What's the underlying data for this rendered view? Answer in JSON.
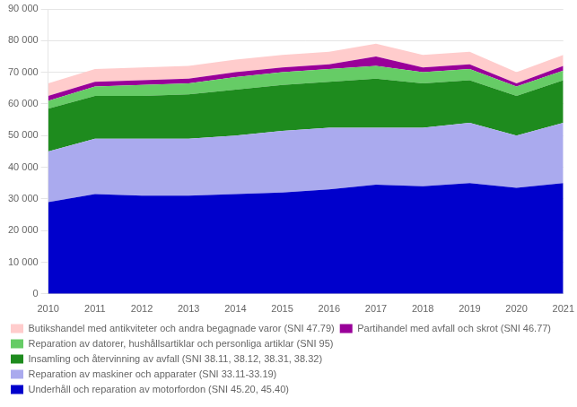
{
  "chart_data": {
    "type": "area",
    "stacked": true,
    "x": [
      2010,
      2011,
      2012,
      2013,
      2014,
      2015,
      2016,
      2017,
      2018,
      2019,
      2020,
      2021
    ],
    "series": [
      {
        "name": "Underhåll och reparation av motorfordon (SNI 45.20, 45.40)",
        "color": "#0000CC",
        "values": [
          29000,
          31500,
          31000,
          31000,
          31500,
          32000,
          33000,
          34500,
          34000,
          35000,
          33500,
          35000
        ]
      },
      {
        "name": "Reparation av maskiner och apparater (SNI 33.11-33.19)",
        "color": "#AAAAEE",
        "values": [
          16000,
          17500,
          18000,
          18000,
          18500,
          19500,
          19500,
          18000,
          18500,
          19000,
          16500,
          19000
        ]
      },
      {
        "name": "Insamling och återvinning av avfall (SNI 38.11, 38.12, 38.31, 38.32)",
        "color": "#1E8B1E",
        "values": [
          13500,
          13500,
          13500,
          14000,
          14500,
          14500,
          14500,
          15500,
          14000,
          13500,
          12500,
          13500
        ]
      },
      {
        "name": "Reparation av datorer, hushållsartiklar och personliga artiklar (SNI 95)",
        "color": "#66CC66",
        "values": [
          2500,
          3000,
          3500,
          3500,
          4000,
          4000,
          4000,
          4000,
          3500,
          3500,
          3000,
          3000
        ]
      },
      {
        "name": "Partihandel med avfall och skrot (SNI 46.77)",
        "color": "#990099",
        "values": [
          1500,
          1500,
          1500,
          1500,
          1500,
          1500,
          1500,
          3000,
          1500,
          1500,
          1000,
          1500
        ]
      },
      {
        "name": "Butikshandel med antikviteter och andra begagnade varor (SNI 47.79)",
        "color": "#FFCCCC",
        "values": [
          4000,
          4000,
          4000,
          4000,
          4000,
          4000,
          4000,
          4000,
          4000,
          4000,
          3500,
          3500
        ]
      }
    ],
    "xlim": [
      2010,
      2021
    ],
    "xticks": [
      2010,
      2011,
      2012,
      2013,
      2014,
      2015,
      2016,
      2017,
      2018,
      2019,
      2020,
      2021
    ],
    "ylim": [
      0,
      90000
    ],
    "yticks": [
      0,
      {
        "value": 10000,
        "label": "10 000"
      },
      {
        "value": 20000,
        "label": "20 000"
      },
      {
        "value": 30000,
        "label": "30 000"
      },
      {
        "value": 40000,
        "label": "40 000"
      },
      {
        "value": 50000,
        "label": "50 000"
      },
      {
        "value": 60000,
        "label": "60 000"
      },
      {
        "value": 70000,
        "label": "70 000"
      },
      {
        "value": 80000,
        "label": "80 000"
      },
      {
        "value": 90000,
        "label": "90 000"
      }
    ],
    "grid": true,
    "legend": "bottom"
  }
}
